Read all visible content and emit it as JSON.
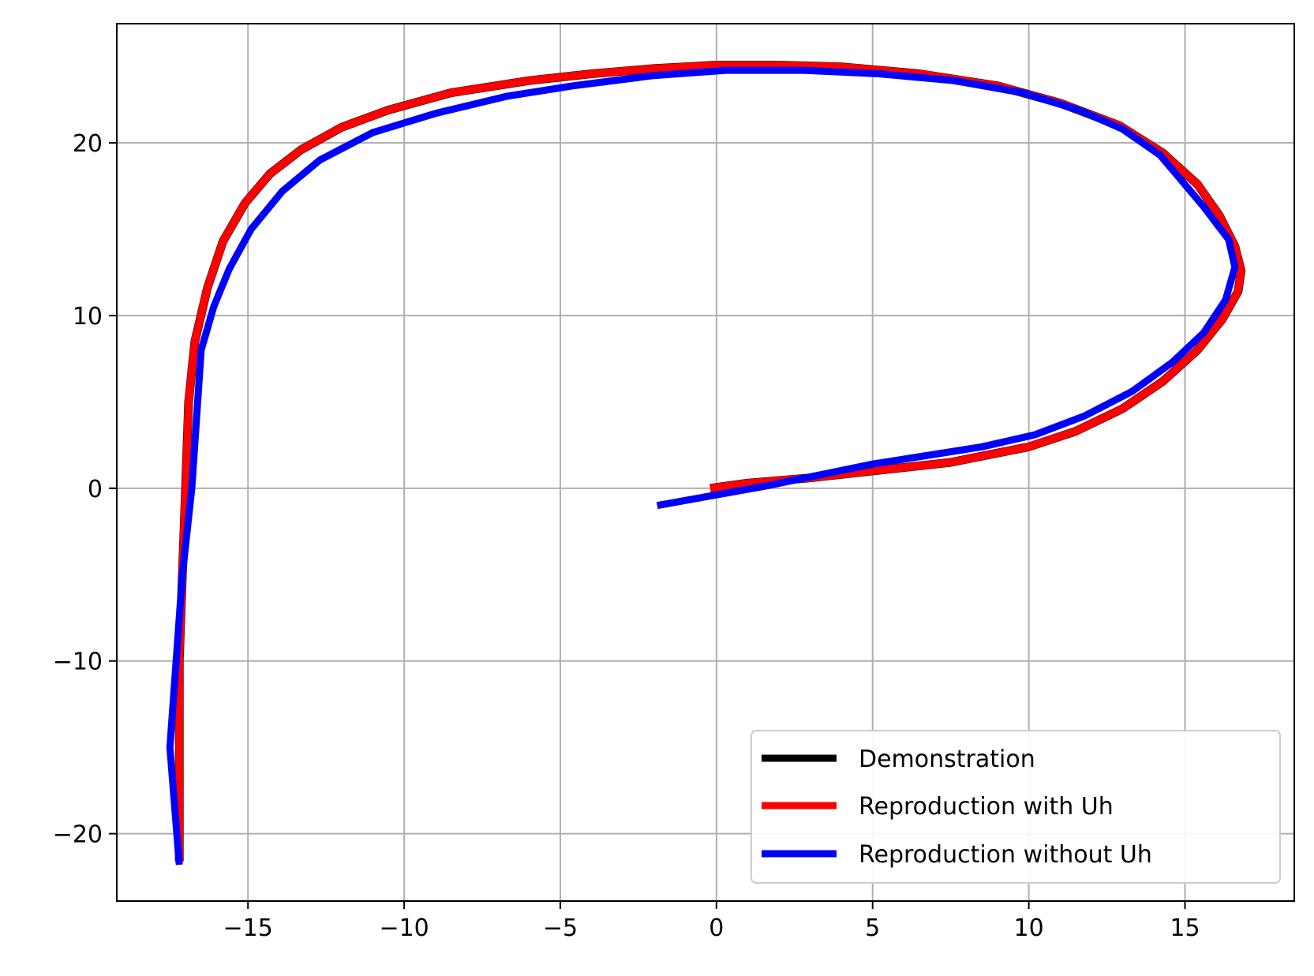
{
  "chart_data": {
    "type": "line",
    "title": "",
    "xlabel": "",
    "ylabel": "",
    "xlim": [
      -19.2,
      18.5
    ],
    "ylim": [
      -23.9,
      26.9
    ],
    "xticks": [
      -15,
      -10,
      -5,
      0,
      5,
      10,
      15
    ],
    "yticks": [
      -20,
      -10,
      0,
      10,
      20
    ],
    "xtick_labels": [
      "−15",
      "−10",
      "−5",
      "0",
      "5",
      "10",
      "15"
    ],
    "ytick_labels": [
      "−20",
      "−10",
      "0",
      "10",
      "20"
    ],
    "grid": true,
    "legend_position": "bottom-right",
    "series": [
      {
        "name": "Demonstration",
        "color": "#000000",
        "x": [
          -0.2,
          1.0,
          3.0,
          5.0,
          7.5,
          10.0,
          11.5,
          13.0,
          14.3,
          15.4,
          16.2,
          16.7,
          16.8,
          16.6,
          16.1,
          15.4,
          14.3,
          12.9,
          11.0,
          9.0,
          6.5,
          4.0,
          2.0,
          0.0,
          -2.0,
          -4.0,
          -6.0,
          -8.5,
          -10.5,
          -12.0,
          -13.3,
          -14.3,
          -15.1,
          -15.8,
          -16.3,
          -16.7,
          -16.9,
          -17.0,
          -17.1,
          -17.2,
          -17.2,
          -17.2
        ],
        "y": [
          0.0,
          0.3,
          0.6,
          1.0,
          1.5,
          2.4,
          3.3,
          4.6,
          6.2,
          8.0,
          9.8,
          11.4,
          12.6,
          14.0,
          15.8,
          17.6,
          19.4,
          21.0,
          22.3,
          23.3,
          24.0,
          24.4,
          24.5,
          24.5,
          24.3,
          24.0,
          23.6,
          22.9,
          21.9,
          20.9,
          19.6,
          18.2,
          16.5,
          14.3,
          11.6,
          8.5,
          5.0,
          0.0,
          -5.0,
          -10.0,
          -16.0,
          -21.6
        ]
      },
      {
        "name": "Reproduction with Uh",
        "color": "#ff0000",
        "x": [
          -0.2,
          1.0,
          3.0,
          5.0,
          7.5,
          10.0,
          11.5,
          13.0,
          14.3,
          15.4,
          16.2,
          16.7,
          16.8,
          16.6,
          16.1,
          15.4,
          14.3,
          12.9,
          11.0,
          9.0,
          6.5,
          4.0,
          2.0,
          0.0,
          -2.0,
          -4.0,
          -6.0,
          -8.5,
          -10.5,
          -12.0,
          -13.3,
          -14.3,
          -15.1,
          -15.8,
          -16.3,
          -16.7,
          -16.9,
          -17.0,
          -17.1,
          -17.2,
          -17.2,
          -17.2
        ],
        "y": [
          0.0,
          0.3,
          0.6,
          1.0,
          1.5,
          2.4,
          3.3,
          4.6,
          6.2,
          8.0,
          9.8,
          11.4,
          12.6,
          14.0,
          15.8,
          17.6,
          19.4,
          21.0,
          22.3,
          23.3,
          24.0,
          24.4,
          24.5,
          24.5,
          24.3,
          24.0,
          23.6,
          22.9,
          21.9,
          20.9,
          19.6,
          18.2,
          16.5,
          14.3,
          11.6,
          8.5,
          5.0,
          0.0,
          -5.0,
          -10.0,
          -16.0,
          -21.6
        ]
      },
      {
        "name": "Reproduction without Uh",
        "color": "#0000ff",
        "x": [
          -1.9,
          1.5,
          5.0,
          8.5,
          10.2,
          11.8,
          13.3,
          14.6,
          15.6,
          16.3,
          16.6,
          16.4,
          15.6,
          14.2,
          13.0,
          11.6,
          9.8,
          7.6,
          5.2,
          2.8,
          0.3,
          -2.0,
          -4.6,
          -6.7,
          -9.0,
          -11.0,
          -12.7,
          -13.9,
          -14.9,
          -15.6,
          -16.1,
          -16.5,
          -16.8,
          -17.1,
          -17.3,
          -17.5,
          -17.2
        ],
        "y": [
          -1.0,
          0.1,
          1.4,
          2.4,
          3.1,
          4.2,
          5.6,
          7.3,
          9.0,
          10.9,
          12.8,
          14.4,
          16.3,
          19.3,
          20.8,
          21.9,
          22.9,
          23.6,
          24.0,
          24.2,
          24.2,
          23.9,
          23.3,
          22.7,
          21.7,
          20.6,
          19.0,
          17.2,
          15.0,
          12.7,
          10.5,
          8.0,
          0.0,
          -5.0,
          -10.0,
          -15.0,
          -21.8
        ]
      }
    ]
  }
}
